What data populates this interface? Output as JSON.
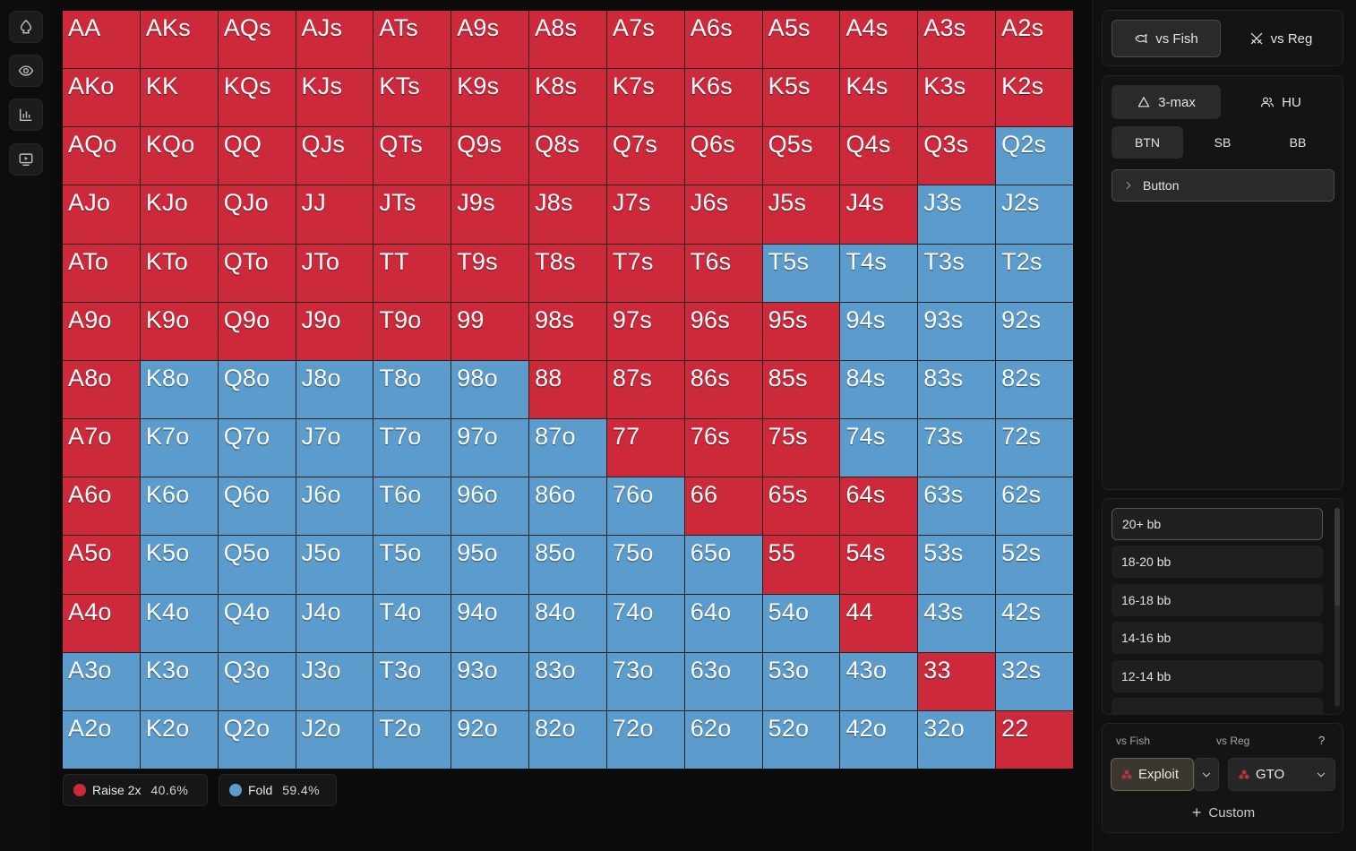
{
  "rail": {
    "items": [
      {
        "name": "spade-icon"
      },
      {
        "name": "eye-icon"
      },
      {
        "name": "bar-chart-icon"
      },
      {
        "name": "video-icon"
      }
    ]
  },
  "legend": {
    "raise": {
      "label": "Raise 2x",
      "pct": "40.6%",
      "color": "#cc2a3b"
    },
    "fold": {
      "label": "Fold",
      "pct": "59.4%",
      "color": "#5b9ccd"
    }
  },
  "grid": {
    "rows": [
      [
        [
          "AA",
          "R"
        ],
        [
          "AKs",
          "R"
        ],
        [
          "AQs",
          "R"
        ],
        [
          "AJs",
          "R"
        ],
        [
          "ATs",
          "R"
        ],
        [
          "A9s",
          "R"
        ],
        [
          "A8s",
          "R"
        ],
        [
          "A7s",
          "R"
        ],
        [
          "A6s",
          "R"
        ],
        [
          "A5s",
          "R"
        ],
        [
          "A4s",
          "R"
        ],
        [
          "A3s",
          "R"
        ],
        [
          "A2s",
          "R"
        ]
      ],
      [
        [
          "AKo",
          "R"
        ],
        [
          "KK",
          "R"
        ],
        [
          "KQs",
          "R"
        ],
        [
          "KJs",
          "R"
        ],
        [
          "KTs",
          "R"
        ],
        [
          "K9s",
          "R"
        ],
        [
          "K8s",
          "R"
        ],
        [
          "K7s",
          "R"
        ],
        [
          "K6s",
          "R"
        ],
        [
          "K5s",
          "R"
        ],
        [
          "K4s",
          "R"
        ],
        [
          "K3s",
          "R"
        ],
        [
          "K2s",
          "R"
        ]
      ],
      [
        [
          "AQo",
          "R"
        ],
        [
          "KQo",
          "R"
        ],
        [
          "QQ",
          "R"
        ],
        [
          "QJs",
          "R"
        ],
        [
          "QTs",
          "R"
        ],
        [
          "Q9s",
          "R"
        ],
        [
          "Q8s",
          "R"
        ],
        [
          "Q7s",
          "R"
        ],
        [
          "Q6s",
          "R"
        ],
        [
          "Q5s",
          "R"
        ],
        [
          "Q4s",
          "R"
        ],
        [
          "Q3s",
          "R"
        ],
        [
          "Q2s",
          "F"
        ]
      ],
      [
        [
          "AJo",
          "R"
        ],
        [
          "KJo",
          "R"
        ],
        [
          "QJo",
          "R"
        ],
        [
          "JJ",
          "R"
        ],
        [
          "JTs",
          "R"
        ],
        [
          "J9s",
          "R"
        ],
        [
          "J8s",
          "R"
        ],
        [
          "J7s",
          "R"
        ],
        [
          "J6s",
          "R"
        ],
        [
          "J5s",
          "R"
        ],
        [
          "J4s",
          "R"
        ],
        [
          "J3s",
          "F"
        ],
        [
          "J2s",
          "F"
        ]
      ],
      [
        [
          "ATo",
          "R"
        ],
        [
          "KTo",
          "R"
        ],
        [
          "QTo",
          "R"
        ],
        [
          "JTo",
          "R"
        ],
        [
          "TT",
          "R"
        ],
        [
          "T9s",
          "R"
        ],
        [
          "T8s",
          "R"
        ],
        [
          "T7s",
          "R"
        ],
        [
          "T6s",
          "R"
        ],
        [
          "T5s",
          "F"
        ],
        [
          "T4s",
          "F"
        ],
        [
          "T3s",
          "F"
        ],
        [
          "T2s",
          "F"
        ]
      ],
      [
        [
          "A9o",
          "R"
        ],
        [
          "K9o",
          "R"
        ],
        [
          "Q9o",
          "R"
        ],
        [
          "J9o",
          "R"
        ],
        [
          "T9o",
          "R"
        ],
        [
          "99",
          "R"
        ],
        [
          "98s",
          "R"
        ],
        [
          "97s",
          "R"
        ],
        [
          "96s",
          "R"
        ],
        [
          "95s",
          "R"
        ],
        [
          "94s",
          "F"
        ],
        [
          "93s",
          "F"
        ],
        [
          "92s",
          "F"
        ]
      ],
      [
        [
          "A8o",
          "R"
        ],
        [
          "K8o",
          "F"
        ],
        [
          "Q8o",
          "F"
        ],
        [
          "J8o",
          "F"
        ],
        [
          "T8o",
          "F"
        ],
        [
          "98o",
          "F"
        ],
        [
          "88",
          "R"
        ],
        [
          "87s",
          "R"
        ],
        [
          "86s",
          "R"
        ],
        [
          "85s",
          "R"
        ],
        [
          "84s",
          "F"
        ],
        [
          "83s",
          "F"
        ],
        [
          "82s",
          "F"
        ]
      ],
      [
        [
          "A7o",
          "R"
        ],
        [
          "K7o",
          "F"
        ],
        [
          "Q7o",
          "F"
        ],
        [
          "J7o",
          "F"
        ],
        [
          "T7o",
          "F"
        ],
        [
          "97o",
          "F"
        ],
        [
          "87o",
          "F"
        ],
        [
          "77",
          "R"
        ],
        [
          "76s",
          "R"
        ],
        [
          "75s",
          "R"
        ],
        [
          "74s",
          "F"
        ],
        [
          "73s",
          "F"
        ],
        [
          "72s",
          "F"
        ]
      ],
      [
        [
          "A6o",
          "R"
        ],
        [
          "K6o",
          "F"
        ],
        [
          "Q6o",
          "F"
        ],
        [
          "J6o",
          "F"
        ],
        [
          "T6o",
          "F"
        ],
        [
          "96o",
          "F"
        ],
        [
          "86o",
          "F"
        ],
        [
          "76o",
          "F"
        ],
        [
          "66",
          "R"
        ],
        [
          "65s",
          "R"
        ],
        [
          "64s",
          "R"
        ],
        [
          "63s",
          "F"
        ],
        [
          "62s",
          "F"
        ]
      ],
      [
        [
          "A5o",
          "R"
        ],
        [
          "K5o",
          "F"
        ],
        [
          "Q5o",
          "F"
        ],
        [
          "J5o",
          "F"
        ],
        [
          "T5o",
          "F"
        ],
        [
          "95o",
          "F"
        ],
        [
          "85o",
          "F"
        ],
        [
          "75o",
          "F"
        ],
        [
          "65o",
          "F"
        ],
        [
          "55",
          "R"
        ],
        [
          "54s",
          "R"
        ],
        [
          "53s",
          "F"
        ],
        [
          "52s",
          "F"
        ]
      ],
      [
        [
          "A4o",
          "R"
        ],
        [
          "K4o",
          "F"
        ],
        [
          "Q4o",
          "F"
        ],
        [
          "J4o",
          "F"
        ],
        [
          "T4o",
          "F"
        ],
        [
          "94o",
          "F"
        ],
        [
          "84o",
          "F"
        ],
        [
          "74o",
          "F"
        ],
        [
          "64o",
          "F"
        ],
        [
          "54o",
          "F"
        ],
        [
          "44",
          "R"
        ],
        [
          "43s",
          "F"
        ],
        [
          "42s",
          "F"
        ]
      ],
      [
        [
          "A3o",
          "F"
        ],
        [
          "K3o",
          "F"
        ],
        [
          "Q3o",
          "F"
        ],
        [
          "J3o",
          "F"
        ],
        [
          "T3o",
          "F"
        ],
        [
          "93o",
          "F"
        ],
        [
          "83o",
          "F"
        ],
        [
          "73o",
          "F"
        ],
        [
          "63o",
          "F"
        ],
        [
          "53o",
          "F"
        ],
        [
          "43o",
          "F"
        ],
        [
          "33",
          "R"
        ],
        [
          "32s",
          "F"
        ]
      ],
      [
        [
          "A2o",
          "F"
        ],
        [
          "K2o",
          "F"
        ],
        [
          "Q2o",
          "F"
        ],
        [
          "J2o",
          "F"
        ],
        [
          "T2o",
          "F"
        ],
        [
          "92o",
          "F"
        ],
        [
          "82o",
          "F"
        ],
        [
          "72o",
          "F"
        ],
        [
          "62o",
          "F"
        ],
        [
          "52o",
          "F"
        ],
        [
          "42o",
          "F"
        ],
        [
          "32o",
          "F"
        ],
        [
          "22",
          "R"
        ]
      ]
    ]
  },
  "panel": {
    "opponent": {
      "vs_fish": "vs Fish",
      "vs_reg": "vs Reg"
    },
    "format": {
      "three_max": "3-max",
      "hu": "HU"
    },
    "positions": {
      "btn": "BTN",
      "sb": "SB",
      "bb": "BB"
    },
    "position_select": "Button",
    "stacks": [
      "20+ bb",
      "18-20 bb",
      "16-18 bb",
      "14-16 bb",
      "12-14 bb"
    ],
    "strategy": {
      "vs_fish_label": "vs Fish",
      "vs_reg_label": "vs Reg",
      "help": "?",
      "exploit": "Exploit",
      "gto": "GTO",
      "custom": "Custom"
    }
  }
}
